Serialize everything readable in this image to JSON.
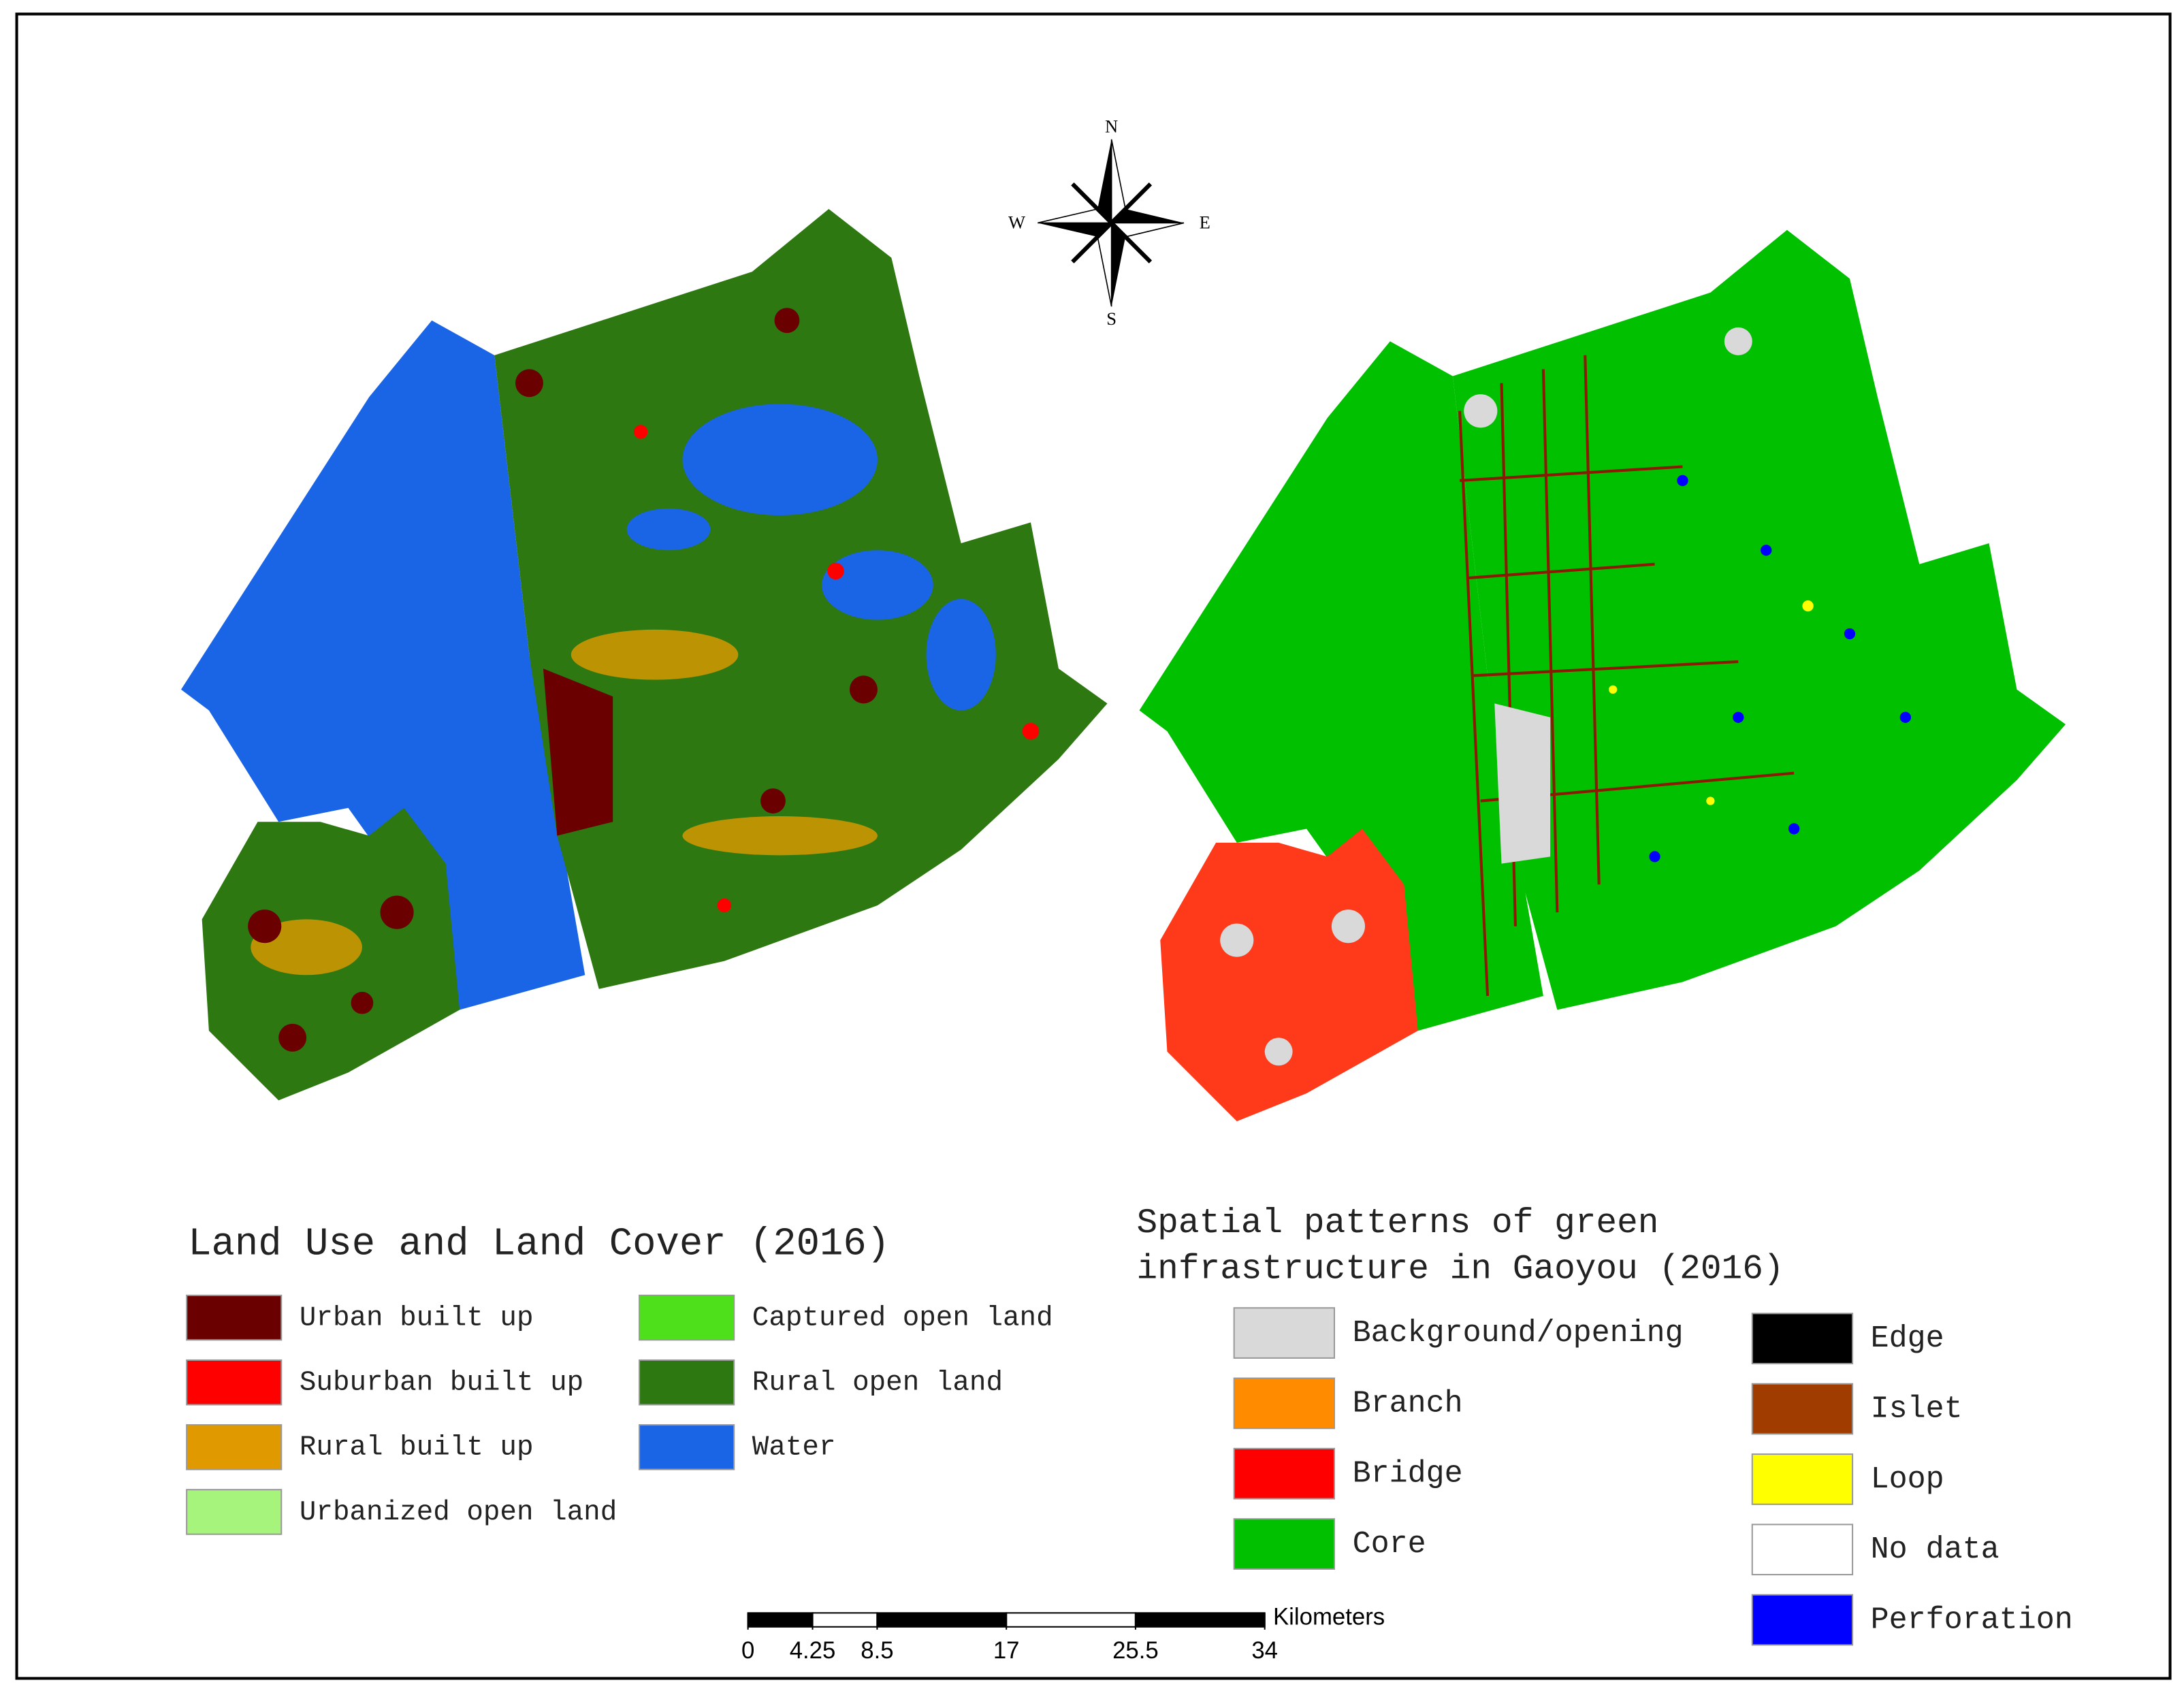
{
  "compass": {
    "north": "N",
    "east": "E",
    "south": "S",
    "west": "W"
  },
  "legend_left": {
    "title": "Land Use and Land Cover (2016)",
    "columns": [
      [
        {
          "label": "Urban built up",
          "color": "#6b0000"
        },
        {
          "label": "Suburban built up",
          "color": "#ff0000"
        },
        {
          "label": "Rural built up",
          "color": "#e09a00"
        },
        {
          "label": "Urbanized open land",
          "color": "#a6f47c"
        }
      ],
      [
        {
          "label": "Captured open land",
          "color": "#4ee01a"
        },
        {
          "label": "Rural open land",
          "color": "#2d7810"
        },
        {
          "label": "Water",
          "color": "#1a64e6"
        }
      ]
    ]
  },
  "legend_right": {
    "title": [
      "Spatial patterns of green",
      "infrastructure in Gaoyou (2016)"
    ],
    "columns": [
      [
        {
          "label": "Background/opening",
          "color": "#d9d9d9"
        },
        {
          "label": "Branch",
          "color": "#ff8c00"
        },
        {
          "label": "Bridge",
          "color": "#ff0000"
        },
        {
          "label": "Core",
          "color": "#00c000"
        }
      ],
      [
        {
          "label": "Edge",
          "color": "#000000"
        },
        {
          "label": "Islet",
          "color": "#a03c00"
        },
        {
          "label": "Loop",
          "color": "#ffff00"
        },
        {
          "label": "No data",
          "color": "#ffffff"
        },
        {
          "label": "Perforation",
          "color": "#0000ff"
        }
      ]
    ]
  },
  "scale_bar": {
    "unit": "Kilometers",
    "ticks": [
      0,
      4.25,
      8.5,
      17,
      25.5,
      34
    ]
  }
}
